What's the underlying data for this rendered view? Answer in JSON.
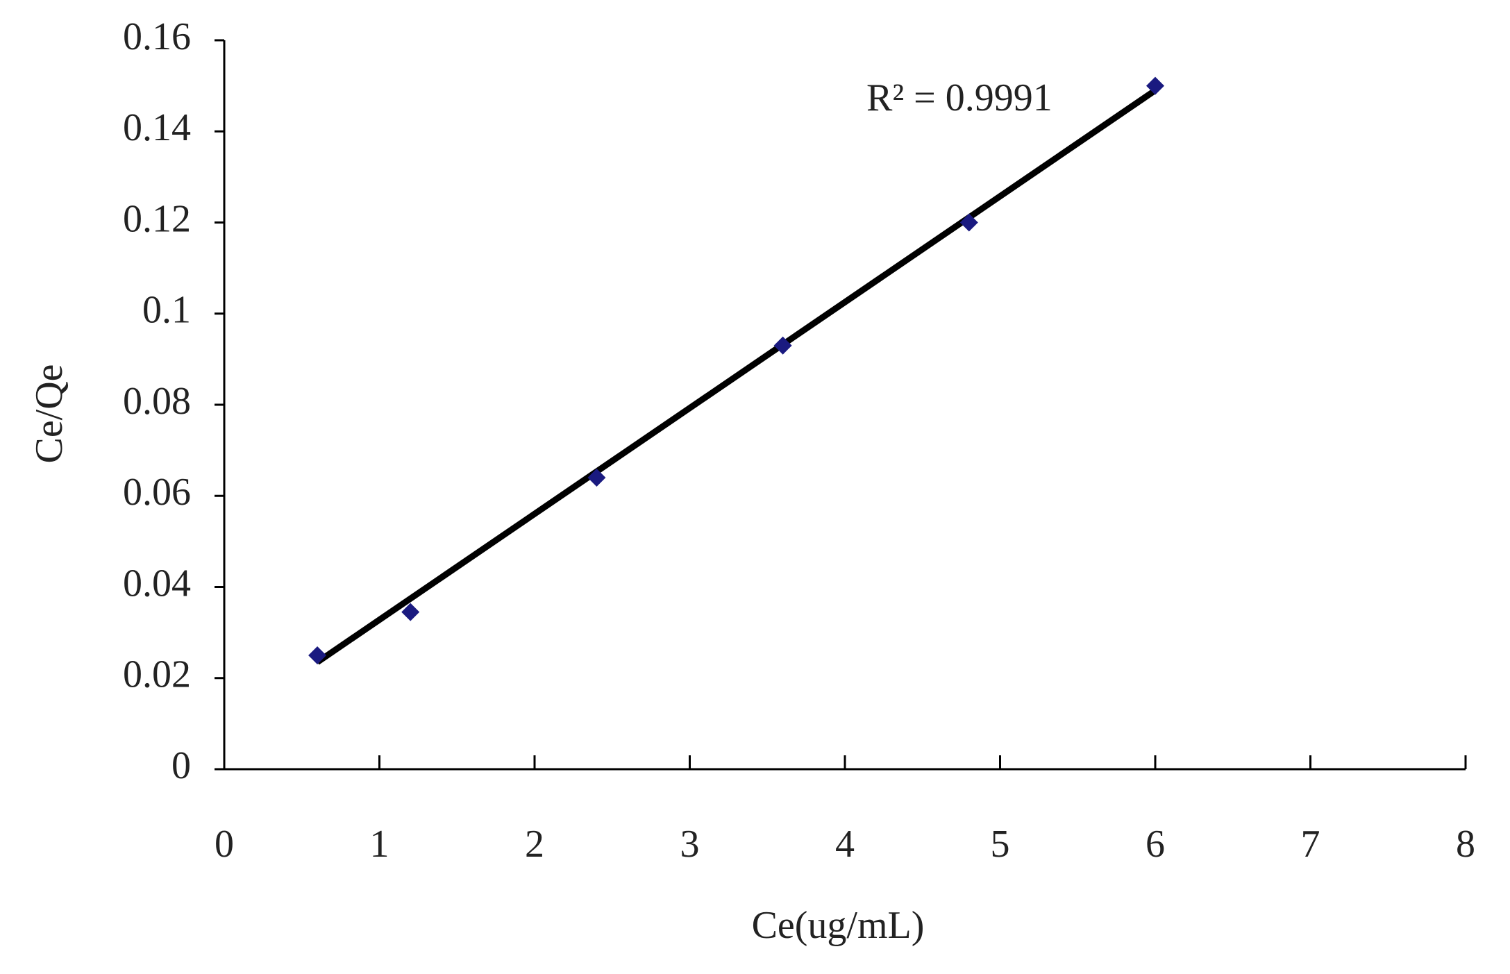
{
  "chart_data": {
    "type": "scatter",
    "x_label": "Ce(ug/mL)",
    "y_label": "Ce/Qe",
    "annotation": "R² = 0.9991",
    "series": [
      {
        "name": "Ce/Qe",
        "color": "#1a1a80",
        "x": [
          0.6,
          1.2,
          2.4,
          3.6,
          4.8,
          6.0
        ],
        "values": [
          0.025,
          0.0345,
          0.064,
          0.093,
          0.12,
          0.15
        ]
      }
    ],
    "trendline": {
      "color": "#000000",
      "x": [
        0.6,
        6.0
      ],
      "values": [
        0.0235,
        0.149
      ]
    },
    "xlim": [
      0,
      8
    ],
    "xticks": [
      0,
      1,
      2,
      3,
      4,
      5,
      6,
      7,
      8
    ],
    "ylim": [
      0,
      0.16
    ],
    "yticks": [
      0,
      0.02,
      0.04,
      0.06,
      0.08,
      0.1,
      0.12,
      0.14,
      0.16
    ],
    "grid": false
  }
}
